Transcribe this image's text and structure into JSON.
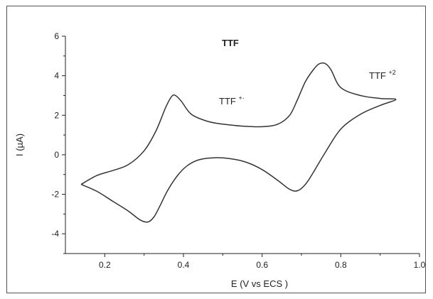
{
  "chart_data": {
    "type": "line",
    "title": "TTF",
    "xlabel": "E (V vs ECS )",
    "ylabel": "I (µA)",
    "xlim": [
      0.1,
      1.0
    ],
    "ylim": [
      -5,
      6
    ],
    "x_ticks": [
      "0.2",
      "0.4",
      "0.6",
      "0.8",
      "1.0"
    ],
    "y_ticks": [
      "6",
      "4",
      "2",
      "0",
      "-2",
      "-4"
    ],
    "grid": false,
    "legend": "none",
    "annotations": [
      {
        "text": "TTF",
        "sup": "+·"
      },
      {
        "text": "TTF",
        "sup": "+2"
      }
    ],
    "series": [
      {
        "x": [
          0.14,
          0.18,
          0.22,
          0.26,
          0.3,
          0.33,
          0.355,
          0.37,
          0.38,
          0.395,
          0.42,
          0.46,
          0.5,
          0.55,
          0.6,
          0.64,
          0.67,
          0.69,
          0.71,
          0.73,
          0.745,
          0.76,
          0.775,
          0.8,
          0.85,
          0.9,
          0.94,
          0.9,
          0.85,
          0.8,
          0.76,
          0.73,
          0.71,
          0.69,
          0.67,
          0.64,
          0.6,
          0.56,
          0.52,
          0.48,
          0.44,
          0.41,
          0.385,
          0.36,
          0.34,
          0.325,
          0.31,
          0.29,
          0.26,
          0.22,
          0.18,
          0.14
        ],
        "y": [
          -1.5,
          -1.05,
          -0.8,
          -0.5,
          0.2,
          1.2,
          2.4,
          2.95,
          3.0,
          2.7,
          2.05,
          1.7,
          1.55,
          1.45,
          1.42,
          1.55,
          2.0,
          2.8,
          3.7,
          4.3,
          4.6,
          4.62,
          4.3,
          3.4,
          3.0,
          2.85,
          2.8,
          2.5,
          2.05,
          1.3,
          0.1,
          -0.9,
          -1.5,
          -1.82,
          -1.75,
          -1.3,
          -0.75,
          -0.38,
          -0.2,
          -0.15,
          -0.25,
          -0.55,
          -1.05,
          -1.8,
          -2.6,
          -3.15,
          -3.4,
          -3.3,
          -2.85,
          -2.35,
          -1.85,
          -1.5
        ]
      }
    ]
  }
}
